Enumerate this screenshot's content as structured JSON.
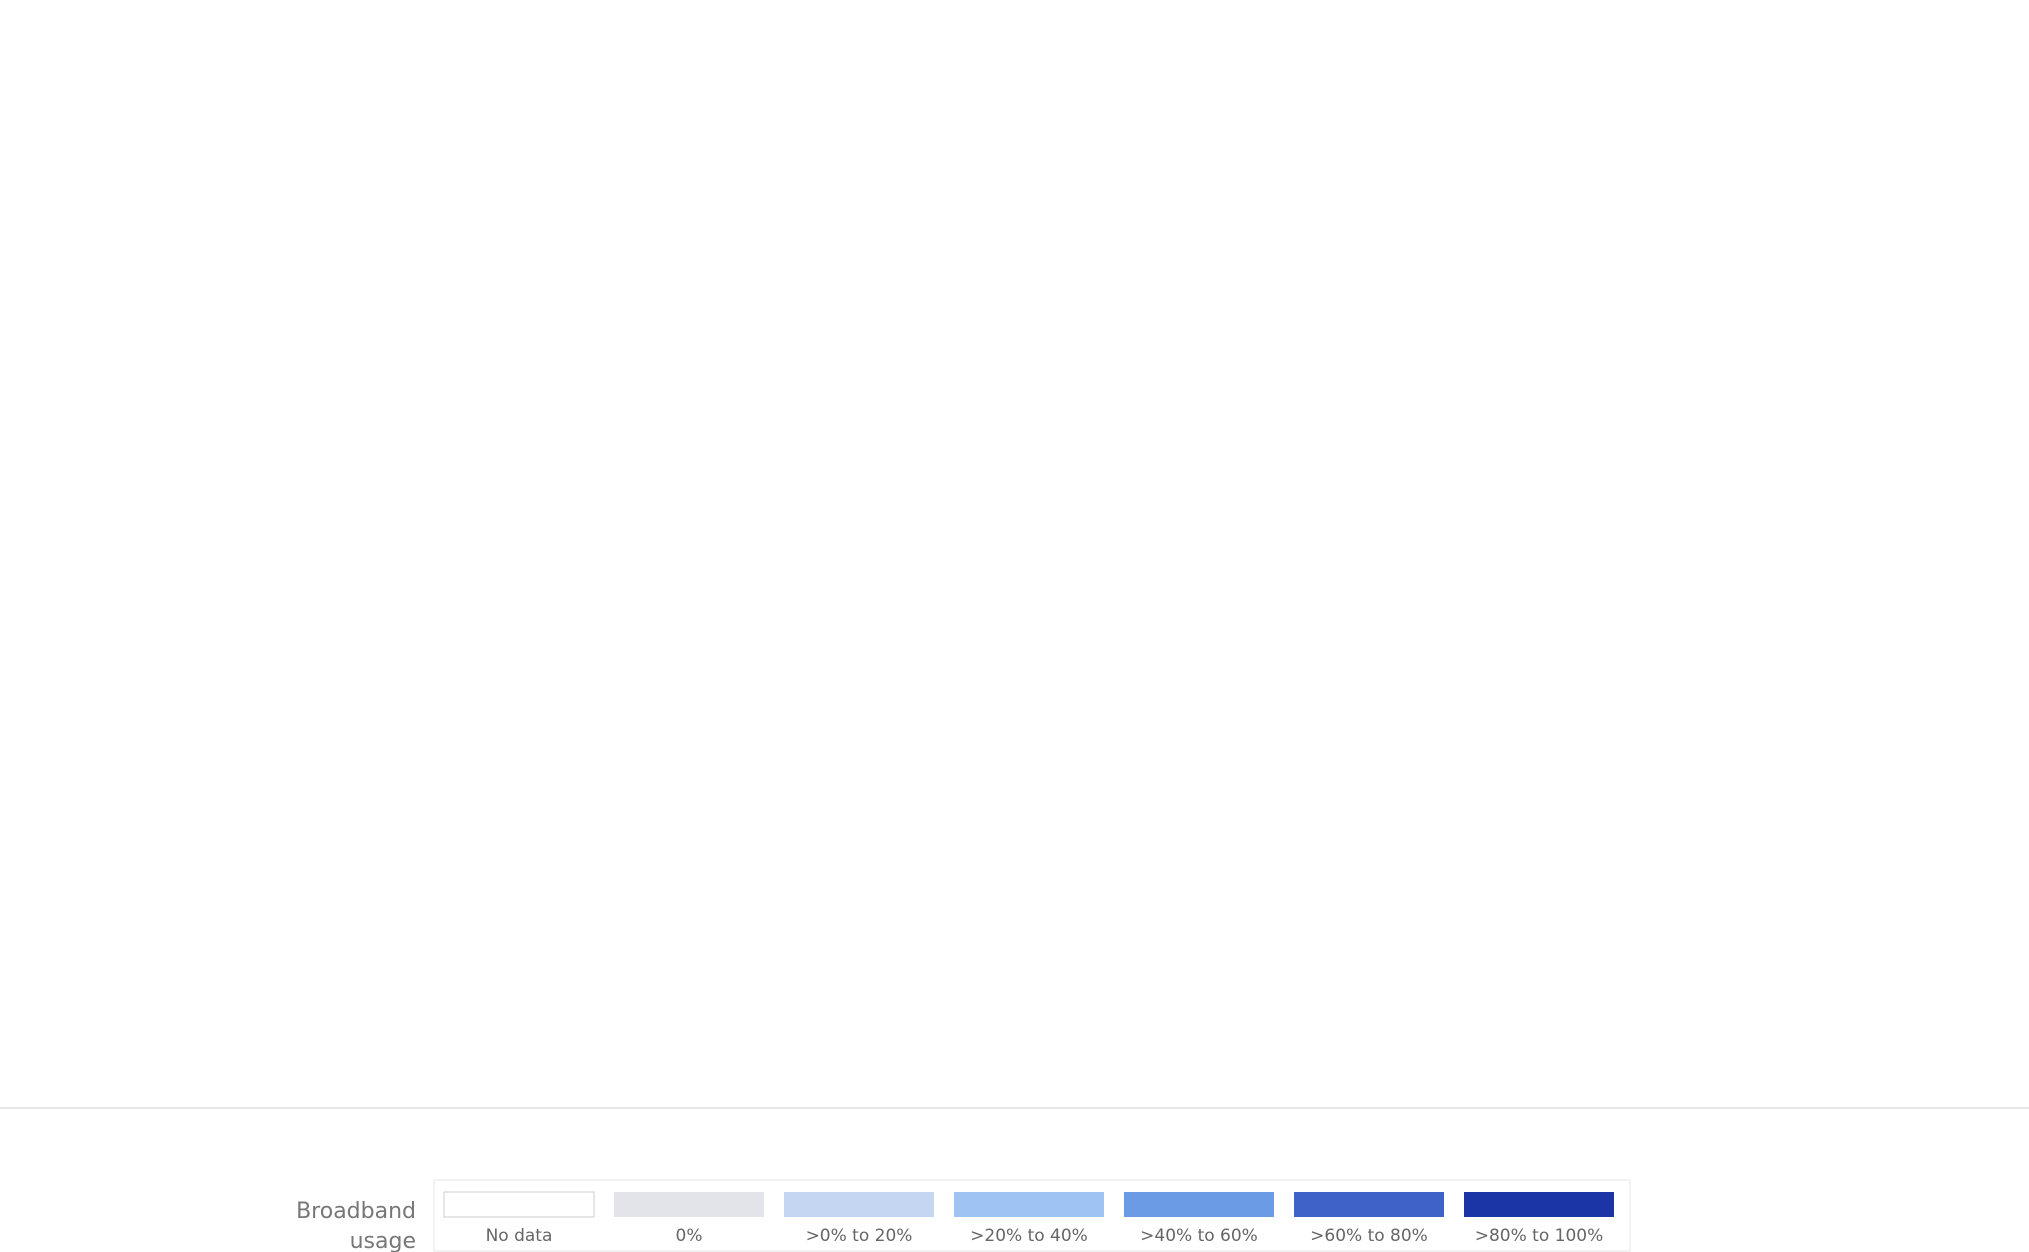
{
  "legend": {
    "title": "Broadband usage",
    "items": [
      {
        "label": "No data",
        "color": "#ffffff"
      },
      {
        "label": "0%",
        "color": "#e2e4ea"
      },
      {
        "label": ">0% to 20%",
        "color": "#c4d6f1"
      },
      {
        "label": ">20% to 40%",
        "color": "#9fc4f4"
      },
      {
        "label": ">40% to 60%",
        "color": "#6c9be6"
      },
      {
        "label": ">60% to 80%",
        "color": "#3e62c7"
      },
      {
        "label": ">80% to 100%",
        "color": "#1b35a7"
      }
    ]
  }
}
